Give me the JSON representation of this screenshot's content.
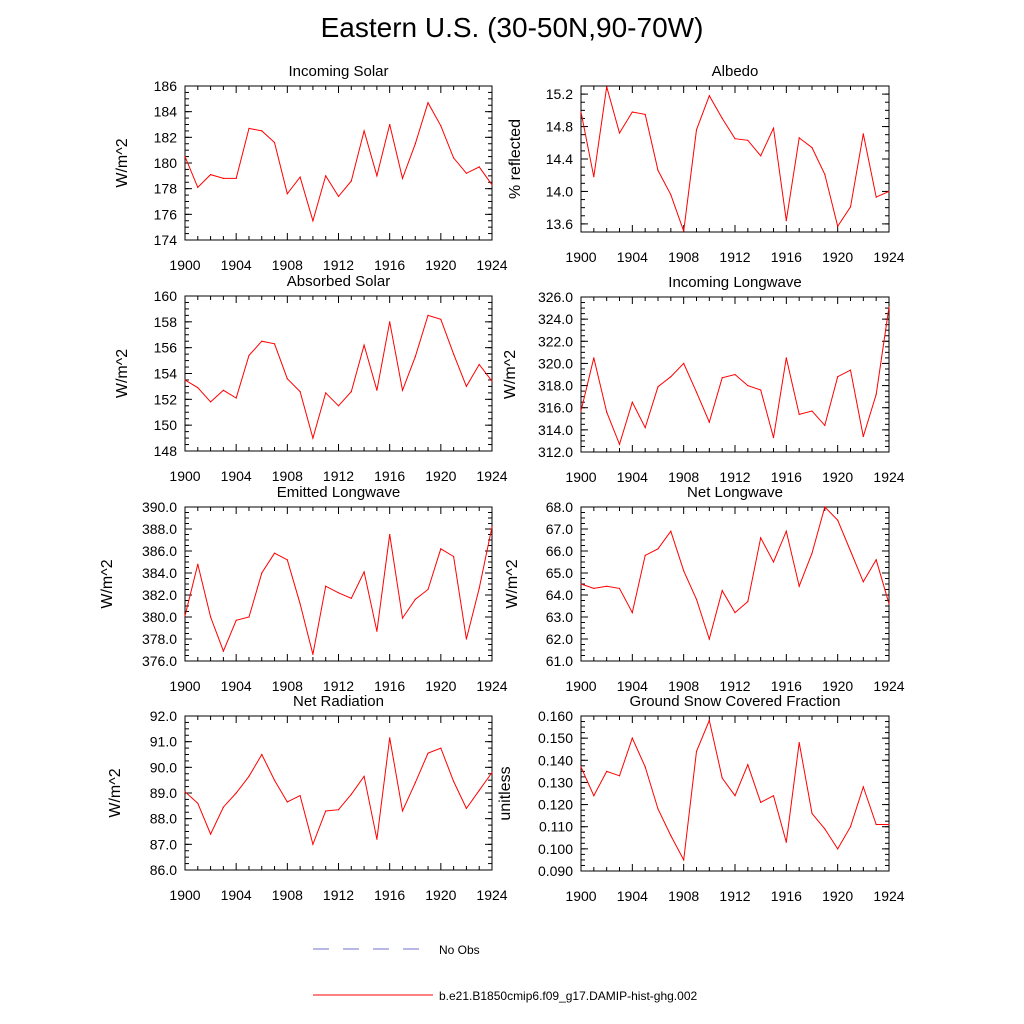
{
  "figure": {
    "title": "Eastern U.S. (30-50N,90-70W)",
    "legend": [
      {
        "label": "No Obs",
        "color": "#6f6fd0",
        "style": "dashed"
      },
      {
        "label": "b.e21.B1850cmip6.f09_g17.DAMIP-hist-ghg.002",
        "color": "#ff0000",
        "style": "solid"
      }
    ]
  },
  "chart_data": [
    {
      "type": "line",
      "title": "Incoming Solar",
      "xlabel": "",
      "ylabel": "W/m^2",
      "xlim": [
        1900,
        1924
      ],
      "ylim": [
        174,
        186
      ],
      "xticks": [
        1900,
        1904,
        1908,
        1912,
        1916,
        1920,
        1924
      ],
      "yticks": [
        174,
        176,
        178,
        180,
        182,
        184,
        186
      ],
      "ydecimals": 0,
      "series": [
        {
          "color": "#ff0000",
          "x": [
            1900,
            1901,
            1902,
            1903,
            1904,
            1905,
            1906,
            1907,
            1908,
            1909,
            1910,
            1911,
            1912,
            1913,
            1914,
            1915,
            1916,
            1917,
            1918,
            1919,
            1920,
            1921,
            1922,
            1923,
            1924
          ],
          "values": [
            180.5,
            178.1,
            179.1,
            178.8,
            178.8,
            182.7,
            182.5,
            181.6,
            177.6,
            178.9,
            175.5,
            179.0,
            177.4,
            178.6,
            182.5,
            179.0,
            183.0,
            178.8,
            181.5,
            184.7,
            182.9,
            180.4,
            179.2,
            179.7,
            178.3
          ]
        }
      ]
    },
    {
      "type": "line",
      "title": "Albedo",
      "xlabel": "",
      "ylabel": "% reflected",
      "xlim": [
        1900,
        1924
      ],
      "ylim": [
        13.5,
        15.3
      ],
      "xticks": [
        1900,
        1904,
        1908,
        1912,
        1916,
        1920,
        1924
      ],
      "yticks": [
        13.6,
        14.0,
        14.4,
        14.8,
        15.2
      ],
      "ydecimals": 1,
      "series": [
        {
          "color": "#ff0000",
          "x": [
            1900,
            1901,
            1902,
            1903,
            1904,
            1905,
            1906,
            1907,
            1908,
            1909,
            1910,
            1911,
            1912,
            1913,
            1914,
            1915,
            1916,
            1917,
            1918,
            1919,
            1920,
            1921,
            1922,
            1923,
            1924
          ],
          "values": [
            14.98,
            14.18,
            15.29,
            14.72,
            14.98,
            14.95,
            14.26,
            13.96,
            13.51,
            14.76,
            15.18,
            14.9,
            14.65,
            14.63,
            14.44,
            14.78,
            13.64,
            14.66,
            14.54,
            14.21,
            13.57,
            13.81,
            14.71,
            13.93,
            14.0
          ]
        }
      ]
    },
    {
      "type": "line",
      "title": "Absorbed Solar",
      "xlabel": "",
      "ylabel": "W/m^2",
      "xlim": [
        1900,
        1924
      ],
      "ylim": [
        148,
        160
      ],
      "xticks": [
        1900,
        1904,
        1908,
        1912,
        1916,
        1920,
        1924
      ],
      "yticks": [
        148,
        150,
        152,
        154,
        156,
        158,
        160
      ],
      "ydecimals": 0,
      "series": [
        {
          "color": "#ff0000",
          "x": [
            1900,
            1901,
            1902,
            1903,
            1904,
            1905,
            1906,
            1907,
            1908,
            1909,
            1910,
            1911,
            1912,
            1913,
            1914,
            1915,
            1916,
            1917,
            1918,
            1919,
            1920,
            1921,
            1922,
            1923,
            1924
          ],
          "values": [
            153.5,
            152.9,
            151.8,
            152.7,
            152.1,
            155.4,
            156.5,
            156.3,
            153.6,
            152.6,
            149.0,
            152.5,
            151.5,
            152.6,
            156.2,
            152.7,
            158.0,
            152.7,
            155.3,
            158.5,
            158.2,
            155.5,
            153.0,
            154.7,
            153.4
          ]
        }
      ]
    },
    {
      "type": "line",
      "title": "Incoming Longwave",
      "xlabel": "",
      "ylabel": "W/m^2",
      "xlim": [
        1900,
        1924
      ],
      "ylim": [
        312,
        326
      ],
      "xticks": [
        1900,
        1904,
        1908,
        1912,
        1916,
        1920,
        1924
      ],
      "yticks": [
        312,
        314,
        316,
        318,
        320,
        322,
        324,
        326
      ],
      "ydecimals": 1,
      "series": [
        {
          "color": "#ff0000",
          "x": [
            1900,
            1901,
            1902,
            1903,
            1904,
            1905,
            1906,
            1907,
            1908,
            1909,
            1910,
            1911,
            1912,
            1913,
            1914,
            1915,
            1916,
            1917,
            1918,
            1919,
            1920,
            1921,
            1922,
            1923,
            1924
          ],
          "values": [
            315.7,
            320.5,
            315.6,
            312.7,
            316.5,
            314.2,
            317.9,
            318.8,
            320.0,
            317.4,
            314.7,
            318.7,
            319.0,
            318.0,
            317.6,
            313.3,
            320.5,
            315.4,
            315.7,
            314.4,
            318.8,
            319.4,
            313.4,
            317.2,
            325.1
          ]
        }
      ]
    },
    {
      "type": "line",
      "title": "Emitted Longwave",
      "xlabel": "",
      "ylabel": "W/m^2",
      "xlim": [
        1900,
        1924
      ],
      "ylim": [
        376,
        390
      ],
      "xticks": [
        1900,
        1904,
        1908,
        1912,
        1916,
        1920,
        1924
      ],
      "yticks": [
        376,
        378,
        380,
        382,
        384,
        386,
        388,
        390
      ],
      "ydecimals": 1,
      "series": [
        {
          "color": "#ff0000",
          "x": [
            1900,
            1901,
            1902,
            1903,
            1904,
            1905,
            1906,
            1907,
            1908,
            1909,
            1910,
            1911,
            1912,
            1913,
            1914,
            1915,
            1916,
            1917,
            1918,
            1919,
            1920,
            1921,
            1922,
            1923,
            1924
          ],
          "values": [
            380.1,
            384.8,
            380.0,
            376.9,
            379.7,
            380.0,
            384.0,
            385.8,
            385.2,
            381.2,
            376.6,
            382.8,
            382.2,
            381.7,
            384.1,
            378.7,
            387.5,
            379.9,
            381.6,
            382.5,
            386.2,
            385.5,
            378.0,
            382.6,
            388.2
          ]
        }
      ]
    },
    {
      "type": "line",
      "title": "Net Longwave",
      "xlabel": "",
      "ylabel": "W/m^2",
      "xlim": [
        1900,
        1924
      ],
      "ylim": [
        61,
        68
      ],
      "xticks": [
        1900,
        1904,
        1908,
        1912,
        1916,
        1920,
        1924
      ],
      "yticks": [
        61,
        62,
        63,
        64,
        65,
        66,
        67,
        68
      ],
      "ydecimals": 1,
      "series": [
        {
          "color": "#ff0000",
          "x": [
            1900,
            1901,
            1902,
            1903,
            1904,
            1905,
            1906,
            1907,
            1908,
            1909,
            1910,
            1911,
            1912,
            1913,
            1914,
            1915,
            1916,
            1917,
            1918,
            1919,
            1920,
            1921,
            1922,
            1923,
            1924
          ],
          "values": [
            64.5,
            64.3,
            64.4,
            64.3,
            63.2,
            65.8,
            66.1,
            66.9,
            65.1,
            63.8,
            62.0,
            64.2,
            63.2,
            63.7,
            66.6,
            65.5,
            66.9,
            64.4,
            65.9,
            68.0,
            67.4,
            66.0,
            64.6,
            65.6,
            63.6
          ]
        }
      ]
    },
    {
      "type": "line",
      "title": "Net Radiation",
      "xlabel": "",
      "ylabel": "W/m^2",
      "xlim": [
        1900,
        1924
      ],
      "ylim": [
        86,
        92
      ],
      "xticks": [
        1900,
        1904,
        1908,
        1912,
        1916,
        1920,
        1924
      ],
      "yticks": [
        86,
        87,
        88,
        89,
        90,
        91,
        92
      ],
      "ydecimals": 1,
      "series": [
        {
          "color": "#ff0000",
          "x": [
            1900,
            1901,
            1902,
            1903,
            1904,
            1905,
            1906,
            1907,
            1908,
            1909,
            1910,
            1911,
            1912,
            1913,
            1914,
            1915,
            1916,
            1917,
            1918,
            1919,
            1920,
            1921,
            1922,
            1923,
            1924
          ],
          "values": [
            89.05,
            88.6,
            87.4,
            88.45,
            89.0,
            89.65,
            90.5,
            89.5,
            88.65,
            88.9,
            87.0,
            88.3,
            88.35,
            88.95,
            89.65,
            87.2,
            91.15,
            88.3,
            89.4,
            90.55,
            90.75,
            89.45,
            88.4,
            89.1,
            89.8
          ]
        }
      ]
    },
    {
      "type": "line",
      "title": "Ground Snow Covered Fraction",
      "xlabel": "",
      "ylabel": "unitless",
      "xlim": [
        1900,
        1924
      ],
      "ylim": [
        0.09,
        0.16
      ],
      "xticks": [
        1900,
        1904,
        1908,
        1912,
        1916,
        1920,
        1924
      ],
      "yticks": [
        0.09,
        0.1,
        0.11,
        0.12,
        0.13,
        0.14,
        0.15,
        0.16
      ],
      "ydecimals": 3,
      "series": [
        {
          "color": "#ff0000",
          "x": [
            1900,
            1901,
            1902,
            1903,
            1904,
            1905,
            1906,
            1907,
            1908,
            1909,
            1910,
            1911,
            1912,
            1913,
            1914,
            1915,
            1916,
            1917,
            1918,
            1919,
            1920,
            1921,
            1922,
            1923,
            1924
          ],
          "values": [
            0.137,
            0.124,
            0.135,
            0.133,
            0.15,
            0.137,
            0.118,
            0.106,
            0.095,
            0.144,
            0.158,
            0.132,
            0.124,
            0.138,
            0.121,
            0.124,
            0.103,
            0.148,
            0.116,
            0.109,
            0.1,
            0.11,
            0.128,
            0.111,
            0.111
          ]
        }
      ]
    }
  ]
}
